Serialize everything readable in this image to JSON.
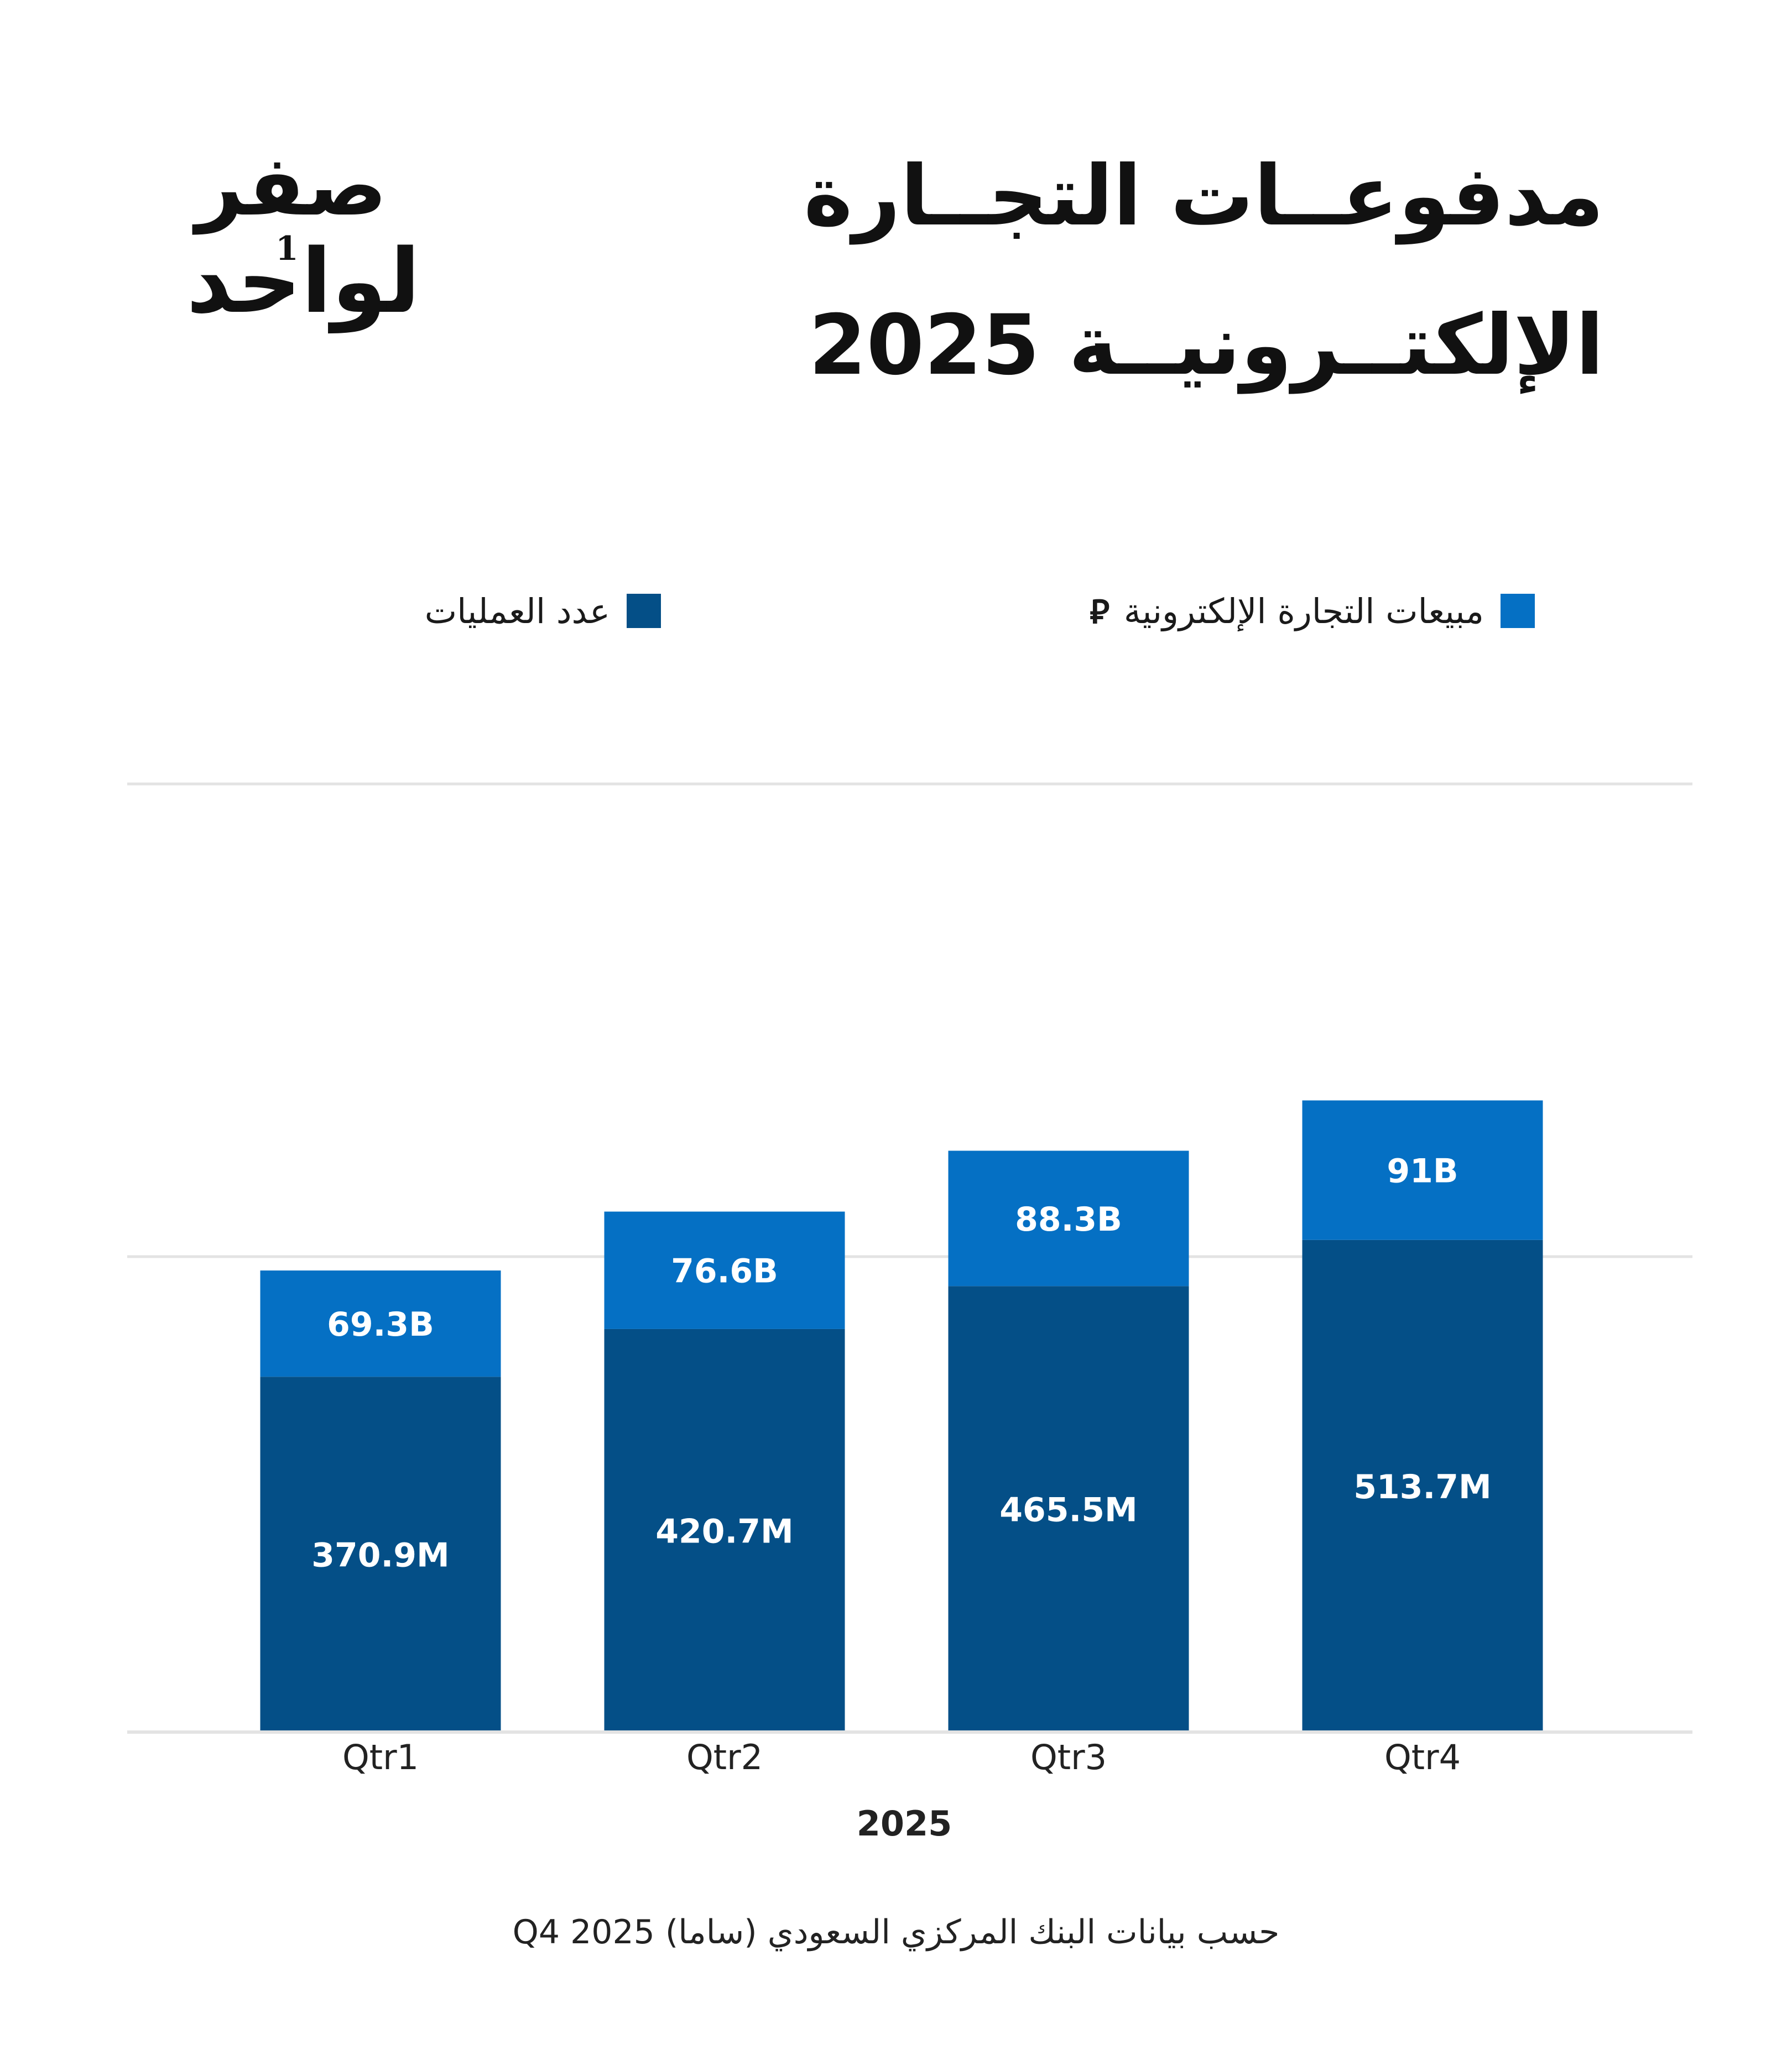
{
  "title": {
    "line1": "مدفوعــات التجــارة",
    "line2": "الإلكتــرونيــة 2025"
  },
  "logo": {
    "top": "صفر",
    "bottom": "لواحد",
    "digit": "1"
  },
  "legend": {
    "sales_label": "مبيعات التجارة الإلكترونية",
    "sales_currency_icon": "saudi-riyal-icon",
    "count_label": "عدد العمليات"
  },
  "colors": {
    "sales": "#0570C4",
    "count": "#044F87",
    "grid": "#E3E3E3",
    "bar_label": "#FFFFFF"
  },
  "chart_data": {
    "type": "bar",
    "stacked": true,
    "categories": [
      "Qtr1",
      "Qtr2",
      "Qtr3",
      "Qtr4"
    ],
    "xlabel": "2025",
    "ylabel": "",
    "grid": true,
    "legend_position": "top",
    "series": [
      {
        "name": "عدد العمليات",
        "values": [
          370.9,
          420.7,
          465.5,
          513.7
        ],
        "labels": [
          "370.9M",
          "420.7M",
          "465.5M",
          "513.7M"
        ]
      },
      {
        "name": "مبيعات التجارة الإلكترونية",
        "values": [
          69.3,
          76.6,
          88.3,
          91
        ],
        "labels": [
          "69.3B",
          "76.6B",
          "88.3B",
          "91B"
        ]
      }
    ],
    "ylim": [
      0,
      600
    ],
    "yticks": [
      0,
      250,
      500
    ]
  },
  "source": "حسب بيانات البنك المركزي السعودي (ساما) Q4 2025"
}
